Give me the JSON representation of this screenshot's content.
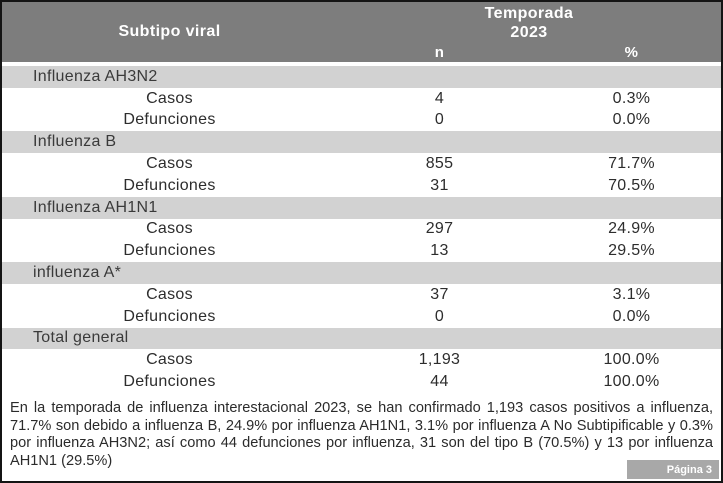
{
  "table": {
    "header": {
      "col1": "Subtipo viral",
      "season_line1": "Temporada",
      "season_line2": "2023",
      "n_label": "n",
      "pct_label": "%"
    },
    "sections": [
      {
        "label": "Influenza AH3N2",
        "rows": [
          {
            "label": "Casos",
            "n": "4",
            "pct": "0.3%"
          },
          {
            "label": "Defunciones",
            "n": "0",
            "pct": "0.0%"
          }
        ]
      },
      {
        "label": "Influenza B",
        "rows": [
          {
            "label": "Casos",
            "n": "855",
            "pct": "71.7%"
          },
          {
            "label": "Defunciones",
            "n": "31",
            "pct": "70.5%"
          }
        ]
      },
      {
        "label": "Influenza AH1N1",
        "rows": [
          {
            "label": "Casos",
            "n": "297",
            "pct": "24.9%"
          },
          {
            "label": "Defunciones",
            "n": "13",
            "pct": "29.5%"
          }
        ]
      },
      {
        "label": "influenza A*",
        "rows": [
          {
            "label": "Casos",
            "n": "37",
            "pct": "3.1%"
          },
          {
            "label": "Defunciones",
            "n": "0",
            "pct": "0.0%"
          }
        ]
      },
      {
        "label": "Total general",
        "rows": [
          {
            "label": "Casos",
            "n": "1,193",
            "pct": "100.0%"
          },
          {
            "label": "Defunciones",
            "n": "44",
            "pct": "100.0%"
          }
        ]
      }
    ]
  },
  "summary_text": "En la temporada de influenza interestacional 2023, se han confirmado 1,193 casos positivos a influenza, 71.7% son debido a influenza B, 24.9% por influenza AH1N1, 3.1% por influenza A No Subtipificable y 0.3% por influenza AH3N2; así como 44 defunciones por influenza, 31 son del tipo B (70.5%) y 13 por influenza AH1N1 (29.5%)",
  "page_label": "Página 3",
  "colors": {
    "header_bg": "#7d7d7d",
    "section_bg": "#d2d2d2",
    "badge_bg": "#a8a8a8",
    "border": "#141414",
    "text": "#2d2d2d"
  }
}
